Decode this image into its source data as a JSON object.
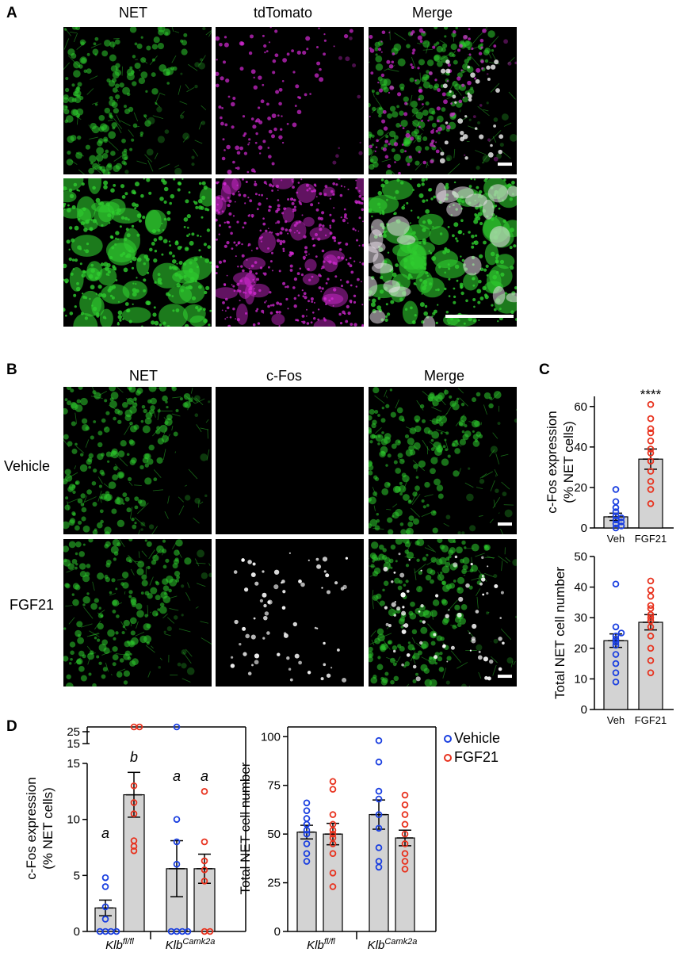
{
  "panelA": {
    "letter": "A",
    "columns": [
      "NET",
      "tdTomato",
      "Merge"
    ]
  },
  "panelB": {
    "letter": "B",
    "columns": [
      "NET",
      "c-Fos",
      "Merge"
    ],
    "rows": [
      "Vehicle",
      "FGF21"
    ]
  },
  "panelC": {
    "letter": "C"
  },
  "panelD": {
    "letter": "D"
  },
  "legend": {
    "vehicle": "Vehicle",
    "fgf21": "FGF21"
  },
  "colors": {
    "vehicle": "#1a3fe0",
    "fgf21": "#e8321e",
    "bar": "#d3d3d3",
    "green": "#2ecc2e",
    "magenta": "#d62ad6"
  },
  "chart_data": [
    {
      "id": "C-top",
      "type": "bar",
      "categories": [
        "Veh",
        "FGF21"
      ],
      "ylabel": "c-Fos expression (% NET cells)",
      "ylim": [
        0,
        65
      ],
      "yticks": [
        0,
        20,
        40,
        60
      ],
      "annotation": "****",
      "series": [
        {
          "key": "veh",
          "mean": 5.5,
          "sem": 1.8,
          "points": [
            0,
            1,
            2,
            3,
            4,
            5,
            6,
            8,
            10,
            13,
            19
          ]
        },
        {
          "key": "fgf",
          "mean": 34,
          "sem": 5,
          "points": [
            61,
            54,
            49,
            47,
            43,
            39,
            37,
            33,
            28,
            23,
            19,
            12
          ]
        }
      ]
    },
    {
      "id": "C-bottom",
      "type": "bar",
      "categories": [
        "Veh",
        "FGF21"
      ],
      "ylabel": "Total NET cell number",
      "ylim": [
        0,
        50
      ],
      "yticks": [
        0,
        10,
        20,
        30,
        40,
        50
      ],
      "series": [
        {
          "key": "veh",
          "mean": 22.5,
          "sem": 2.2,
          "points": [
            9,
            12,
            15,
            18,
            21,
            22,
            23,
            24,
            25,
            27,
            41
          ]
        },
        {
          "key": "fgf",
          "mean": 28.5,
          "sem": 2.5,
          "points": [
            12,
            16,
            20,
            24,
            27,
            29,
            30,
            31,
            33,
            34,
            37,
            39,
            42
          ]
        }
      ]
    },
    {
      "id": "D-left",
      "type": "bar",
      "genotypes": [
        "Klb",
        "Klb"
      ],
      "genotype_sup": [
        "fl/fl",
        "Camk2a"
      ],
      "ylabel": "c-Fos expression (% NET cells)",
      "yticks": [
        0,
        5,
        10,
        15
      ],
      "break_ticks": [
        15,
        25
      ],
      "letters": [
        "a",
        "b",
        "a",
        "a"
      ],
      "series": [
        {
          "key": "veh",
          "mean": 2.1,
          "sem": 0.7,
          "points": [
            0,
            0,
            0,
            0,
            1.1,
            2.2,
            4,
            4.8
          ]
        },
        {
          "key": "fgf",
          "mean": 12.2,
          "sem": 2,
          "points": [
            7.2,
            7.6,
            8.1,
            10.5,
            11.5,
            13,
            24,
            24
          ]
        },
        {
          "key": "veh",
          "mean": 5.6,
          "sem": 2.5,
          "points": [
            0,
            0,
            0,
            0,
            6,
            8,
            10,
            24
          ]
        },
        {
          "key": "fgf",
          "mean": 5.6,
          "sem": 1.3,
          "points": [
            0,
            0,
            4.5,
            5.5,
            6.3,
            8,
            12.5
          ]
        }
      ]
    },
    {
      "id": "D-right",
      "type": "bar",
      "genotypes": [
        "Klb",
        "Klb"
      ],
      "genotype_sup": [
        "fl/fl",
        "Camk2a"
      ],
      "ylabel": "Total NET cell number",
      "ylim": [
        0,
        105
      ],
      "yticks": [
        0,
        25,
        50,
        75,
        100
      ],
      "series": [
        {
          "key": "veh",
          "mean": 51,
          "sem": 3.5,
          "points": [
            36,
            40,
            45,
            50,
            52,
            55,
            58,
            62,
            66
          ]
        },
        {
          "key": "fgf",
          "mean": 50,
          "sem": 5.5,
          "points": [
            23,
            30,
            40,
            45,
            48,
            50,
            52,
            55,
            60,
            73,
            77
          ]
        },
        {
          "key": "veh",
          "mean": 60,
          "sem": 7.5,
          "points": [
            33,
            36,
            43,
            53,
            60,
            68,
            72,
            87,
            98
          ]
        },
        {
          "key": "fgf",
          "mean": 48,
          "sem": 4,
          "points": [
            32,
            36,
            40,
            45,
            50,
            55,
            60,
            65,
            70
          ]
        }
      ]
    }
  ]
}
